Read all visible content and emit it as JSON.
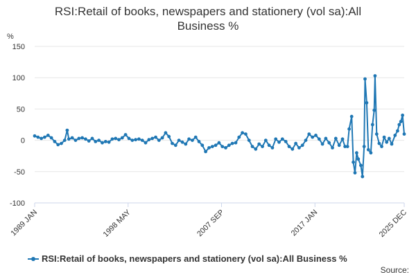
{
  "title_line1": "RSI:Retail of books, newspapers and stationery (vol sa):All",
  "title_line2": "Business %",
  "source_label": "Source:",
  "colors": {
    "series": "#1f77b4",
    "grid": "#e6e6e6",
    "axis": "#ccd6eb"
  },
  "chart_data": {
    "type": "line",
    "title": "RSI:Retail of books, newspapers and stationery (vol sa):All Business %",
    "ylabel": "%",
    "ylim": [
      -100,
      150
    ],
    "yticks": [
      150,
      100,
      50,
      0,
      -50,
      -100
    ],
    "xlim": [
      "1989 JAN",
      "2025 DEC"
    ],
    "xticks": [
      "1989 JAN",
      "1998 MAY",
      "2007 SEP",
      "2017 JAN",
      "2025 DEC"
    ],
    "grid": true,
    "legend_position": "bottom",
    "series": [
      {
        "name": "RSI:Retail of books, newspapers and stationery (vol sa):All Business %",
        "points": [
          [
            "1989-01",
            7
          ],
          [
            "1989-05",
            5
          ],
          [
            "1989-09",
            3
          ],
          [
            "1990-01",
            5
          ],
          [
            "1990-05",
            8
          ],
          [
            "1990-09",
            4
          ],
          [
            "1991-01",
            -2
          ],
          [
            "1991-05",
            -7
          ],
          [
            "1991-09",
            -5
          ],
          [
            "1992-01",
            0
          ],
          [
            "1992-04",
            16
          ],
          [
            "1992-06",
            2
          ],
          [
            "1992-10",
            4
          ],
          [
            "1993-02",
            0
          ],
          [
            "1993-06",
            3
          ],
          [
            "1993-10",
            4
          ],
          [
            "1994-02",
            2
          ],
          [
            "1994-06",
            -1
          ],
          [
            "1994-10",
            3
          ],
          [
            "1995-02",
            -2
          ],
          [
            "1995-06",
            0
          ],
          [
            "1995-10",
            -4
          ],
          [
            "1996-02",
            -2
          ],
          [
            "1996-06",
            -3
          ],
          [
            "1996-10",
            2
          ],
          [
            "1997-02",
            3
          ],
          [
            "1997-06",
            1
          ],
          [
            "1997-10",
            4
          ],
          [
            "1998-02",
            9
          ],
          [
            "1998-06",
            3
          ],
          [
            "1998-10",
            0
          ],
          [
            "1999-02",
            1
          ],
          [
            "1999-06",
            2
          ],
          [
            "1999-10",
            0
          ],
          [
            "2000-02",
            -4
          ],
          [
            "2000-06",
            1
          ],
          [
            "2000-10",
            3
          ],
          [
            "2001-02",
            5
          ],
          [
            "2001-06",
            0
          ],
          [
            "2001-10",
            4
          ],
          [
            "2002-02",
            12
          ],
          [
            "2002-06",
            6
          ],
          [
            "2002-10",
            -5
          ],
          [
            "2003-02",
            -8
          ],
          [
            "2003-06",
            0
          ],
          [
            "2003-10",
            -3
          ],
          [
            "2004-02",
            -6
          ],
          [
            "2004-06",
            2
          ],
          [
            "2004-10",
            0
          ],
          [
            "2005-02",
            5
          ],
          [
            "2005-06",
            -2
          ],
          [
            "2005-10",
            -8
          ],
          [
            "2006-02",
            -18
          ],
          [
            "2006-06",
            -12
          ],
          [
            "2006-10",
            -10
          ],
          [
            "2007-02",
            -8
          ],
          [
            "2007-06",
            -4
          ],
          [
            "2007-10",
            -10
          ],
          [
            "2008-02",
            -12
          ],
          [
            "2008-06",
            -8
          ],
          [
            "2008-10",
            -5
          ],
          [
            "2009-02",
            -4
          ],
          [
            "2009-06",
            5
          ],
          [
            "2009-10",
            12
          ],
          [
            "2010-02",
            10
          ],
          [
            "2010-06",
            0
          ],
          [
            "2010-10",
            -10
          ],
          [
            "2011-02",
            -14
          ],
          [
            "2011-06",
            -6
          ],
          [
            "2011-10",
            -10
          ],
          [
            "2012-02",
            0
          ],
          [
            "2012-06",
            -8
          ],
          [
            "2012-10",
            -12
          ],
          [
            "2013-02",
            2
          ],
          [
            "2013-06",
            -3
          ],
          [
            "2013-10",
            2
          ],
          [
            "2014-02",
            -2
          ],
          [
            "2014-06",
            -10
          ],
          [
            "2014-10",
            -14
          ],
          [
            "2015-02",
            -5
          ],
          [
            "2015-06",
            -12
          ],
          [
            "2015-10",
            -8
          ],
          [
            "2016-02",
            0
          ],
          [
            "2016-06",
            10
          ],
          [
            "2016-10",
            5
          ],
          [
            "2017-02",
            8
          ],
          [
            "2017-06",
            2
          ],
          [
            "2017-10",
            -6
          ],
          [
            "2018-02",
            3
          ],
          [
            "2018-06",
            -4
          ],
          [
            "2018-10",
            -12
          ],
          [
            "2019-02",
            3
          ],
          [
            "2019-06",
            -8
          ],
          [
            "2019-10",
            2
          ],
          [
            "2020-01",
            -10
          ],
          [
            "2020-04",
            -10
          ],
          [
            "2020-06",
            18
          ],
          [
            "2020-09",
            38
          ],
          [
            "2020-11",
            -35
          ],
          [
            "2021-01",
            -52
          ],
          [
            "2021-03",
            -20
          ],
          [
            "2021-05",
            -30
          ],
          [
            "2021-08",
            -40
          ],
          [
            "2021-10",
            -58
          ],
          [
            "2021-12",
            -10
          ],
          [
            "2022-01",
            98
          ],
          [
            "2022-03",
            60
          ],
          [
            "2022-05",
            -15
          ],
          [
            "2022-08",
            -20
          ],
          [
            "2022-10",
            25
          ],
          [
            "2022-12",
            48
          ],
          [
            "2023-01",
            103
          ],
          [
            "2023-03",
            10
          ],
          [
            "2023-06",
            -5
          ],
          [
            "2023-09",
            -10
          ],
          [
            "2023-12",
            5
          ],
          [
            "2024-03",
            -3
          ],
          [
            "2024-06",
            3
          ],
          [
            "2024-09",
            -6
          ],
          [
            "2025-01",
            8
          ],
          [
            "2025-04",
            15
          ],
          [
            "2025-06",
            25
          ],
          [
            "2025-08",
            30
          ],
          [
            "2025-10",
            40
          ],
          [
            "2025-12",
            10
          ]
        ]
      }
    ]
  }
}
